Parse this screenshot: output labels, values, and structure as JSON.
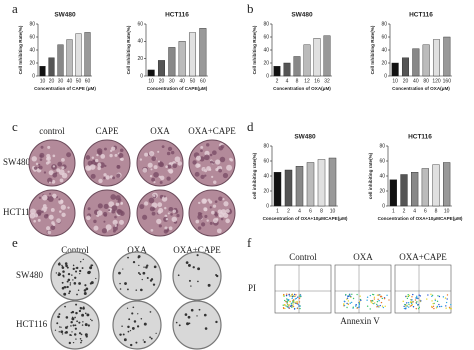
{
  "panel_labels": [
    "a",
    "b",
    "c",
    "d",
    "e",
    "f"
  ],
  "chart_data": [
    {
      "type": "bar",
      "title": "SW480",
      "categories": [
        "10",
        "20",
        "30",
        "40",
        "50",
        "60"
      ],
      "values": [
        15,
        28,
        48,
        56,
        65,
        67
      ],
      "colors": [
        "#111111",
        "#555555",
        "#888888",
        "#bbbbbb",
        "#e0e0e0",
        "#999999"
      ],
      "ylim": [
        0,
        80
      ],
      "yticks": [
        0,
        20,
        40,
        60,
        80
      ],
      "ylabel": "Cell Inhibiting Rate(%)",
      "xlabel": "Concentration of CAPE (μM)"
    },
    {
      "type": "bar",
      "title": "HCT116",
      "categories": [
        "10",
        "20",
        "30",
        "40",
        "50",
        "60"
      ],
      "values": [
        7,
        18,
        33,
        40,
        50,
        55
      ],
      "colors": [
        "#111111",
        "#555555",
        "#888888",
        "#bbbbbb",
        "#e0e0e0",
        "#999999"
      ],
      "ylim": [
        0,
        60
      ],
      "yticks": [
        0,
        20,
        40,
        60
      ],
      "ylabel": "Cell Inhibiting Rate(%)",
      "xlabel": "Concentration of CAPE(μM)"
    },
    {
      "type": "bar",
      "title": "SW480",
      "categories": [
        "2",
        "4",
        "8",
        "12",
        "16",
        "32"
      ],
      "values": [
        15,
        20,
        30,
        48,
        58,
        62
      ],
      "colors": [
        "#111111",
        "#555555",
        "#888888",
        "#bbbbbb",
        "#e0e0e0",
        "#999999"
      ],
      "ylim": [
        0,
        80
      ],
      "yticks": [
        0,
        20,
        40,
        60,
        80
      ],
      "ylabel": "Cell Inhibiting Rate(%)",
      "xlabel": "Concentration of OXA(μM)"
    },
    {
      "type": "bar",
      "title": "HCT116",
      "categories": [
        "10",
        "20",
        "40",
        "80",
        "120",
        "160"
      ],
      "values": [
        20,
        28,
        42,
        48,
        56,
        60
      ],
      "colors": [
        "#111111",
        "#555555",
        "#888888",
        "#bbbbbb",
        "#e0e0e0",
        "#999999"
      ],
      "ylim": [
        0,
        80
      ],
      "yticks": [
        0,
        20,
        40,
        60,
        80
      ],
      "ylabel": "Cell Inhibiting Rate(%)",
      "xlabel": "Concentration of OXA(μM)"
    },
    {
      "type": "bar",
      "title": "SW480",
      "categories": [
        "1",
        "2",
        "4",
        "6",
        "8",
        "10"
      ],
      "values": [
        45,
        48,
        53,
        58,
        62,
        64
      ],
      "colors": [
        "#111111",
        "#555555",
        "#888888",
        "#bbbbbb",
        "#e0e0e0",
        "#999999"
      ],
      "ylim": [
        0,
        80
      ],
      "yticks": [
        0,
        20,
        40,
        60,
        80
      ],
      "ylabel": "cell inhibiting rate(%)",
      "xlabel": "Concentration of OXA+10μMCAPE(μM)"
    },
    {
      "type": "bar",
      "title": "HCT116",
      "categories": [
        "1",
        "2",
        "4",
        "6",
        "8",
        "10"
      ],
      "values": [
        35,
        42,
        45,
        50,
        55,
        58
      ],
      "colors": [
        "#111111",
        "#555555",
        "#888888",
        "#bbbbbb",
        "#e0e0e0",
        "#999999"
      ],
      "ylim": [
        0,
        80
      ],
      "yticks": [
        0,
        20,
        40,
        60,
        80
      ],
      "ylabel": "cell inhibiting rate(%)",
      "xlabel": "Concentration of OXA+10μMCAPE(μM)"
    }
  ],
  "micrographs": {
    "columns": [
      "control",
      "CAPE",
      "OXA",
      "OXA+CAPE"
    ],
    "rows": [
      "SW480",
      "HCT116"
    ]
  },
  "colony_assay": {
    "columns": [
      "Control",
      "OXA",
      "OXA+CAPE"
    ],
    "rows": [
      "SW480",
      "HCT116"
    ]
  },
  "flow_cytometry": {
    "columns": [
      "Control",
      "OXA",
      "OXA+CAPE"
    ],
    "y_label": "PI",
    "x_label": "Annexin V"
  }
}
